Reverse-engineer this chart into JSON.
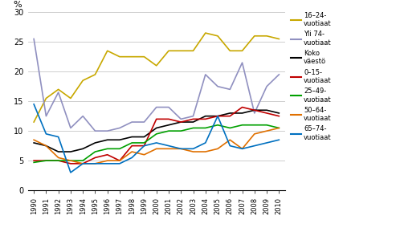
{
  "years": [
    1990,
    1991,
    1992,
    1993,
    1994,
    1995,
    1996,
    1997,
    1998,
    1999,
    2000,
    2001,
    2002,
    2003,
    2004,
    2005,
    2006,
    2007,
    2008,
    2009,
    2010
  ],
  "series": {
    "16-24-\nvuotiaat": {
      "color": "#C8A800",
      "values": [
        11.5,
        15.5,
        17.0,
        15.5,
        18.5,
        19.5,
        23.5,
        22.5,
        22.5,
        22.5,
        21.0,
        23.5,
        23.5,
        23.5,
        26.5,
        26.0,
        23.5,
        23.5,
        26.0,
        26.0,
        25.5
      ]
    },
    "Yli 74-\nvuotiaat": {
      "color": "#9090C0",
      "values": [
        25.5,
        12.5,
        16.5,
        10.5,
        12.5,
        10.0,
        10.0,
        10.5,
        11.5,
        11.5,
        14.0,
        14.0,
        12.0,
        12.5,
        19.5,
        17.5,
        17.0,
        21.5,
        13.0,
        17.5,
        19.5
      ]
    },
    "Koko\nväestö": {
      "color": "#000000",
      "values": [
        8.0,
        7.5,
        6.5,
        6.5,
        7.0,
        8.0,
        8.5,
        8.5,
        9.0,
        9.0,
        10.5,
        11.0,
        11.5,
        11.5,
        12.5,
        12.5,
        13.0,
        13.0,
        13.5,
        13.5,
        13.0
      ]
    },
    "0-15-\nvuotiaat": {
      "color": "#C00000",
      "values": [
        5.0,
        5.0,
        5.0,
        4.5,
        4.5,
        5.5,
        6.0,
        5.0,
        7.5,
        7.5,
        12.0,
        12.0,
        11.5,
        12.0,
        12.0,
        12.5,
        12.5,
        14.0,
        13.5,
        13.0,
        12.5
      ]
    },
    "25-49-\nvuotiaat": {
      "color": "#00A000",
      "values": [
        4.7,
        5.0,
        5.0,
        5.0,
        5.0,
        6.5,
        7.0,
        7.0,
        8.0,
        8.0,
        9.5,
        10.0,
        10.0,
        10.5,
        10.5,
        11.0,
        10.5,
        11.0,
        11.0,
        11.0,
        10.5
      ]
    },
    "50-64-\nvuotiaat": {
      "color": "#E07000",
      "values": [
        8.5,
        7.5,
        5.5,
        5.0,
        4.5,
        4.5,
        5.0,
        5.0,
        6.5,
        6.0,
        7.0,
        7.0,
        7.0,
        6.5,
        6.5,
        7.0,
        8.5,
        7.0,
        9.5,
        10.0,
        10.5
      ]
    },
    "65-74-\nvuotiaat": {
      "color": "#0070C0",
      "values": [
        14.5,
        9.5,
        9.0,
        3.0,
        4.5,
        4.5,
        4.5,
        4.5,
        5.5,
        7.5,
        8.0,
        7.5,
        7.0,
        7.0,
        8.0,
        12.5,
        7.5,
        7.0,
        7.5,
        8.0,
        8.5
      ]
    }
  },
  "ylabel": "%",
  "ylim": [
    0,
    30
  ],
  "yticks": [
    0,
    5,
    10,
    15,
    20,
    25,
    30
  ],
  "xlim_start": 1990,
  "xlim_end": 2010,
  "legend_labels": [
    "16–24-\nvuotiaat",
    "Yli 74-\nvuotiaat",
    "Koko\nväestö",
    "0–15-\nvuotiaat",
    "25–49-\nvuotiaat",
    "50–64-\nvuotiaat",
    "65–74-\nvuotiaat"
  ],
  "legend_colors": [
    "#C8A800",
    "#9090C0",
    "#000000",
    "#C00000",
    "#00A000",
    "#E07000",
    "#0070C0"
  ]
}
